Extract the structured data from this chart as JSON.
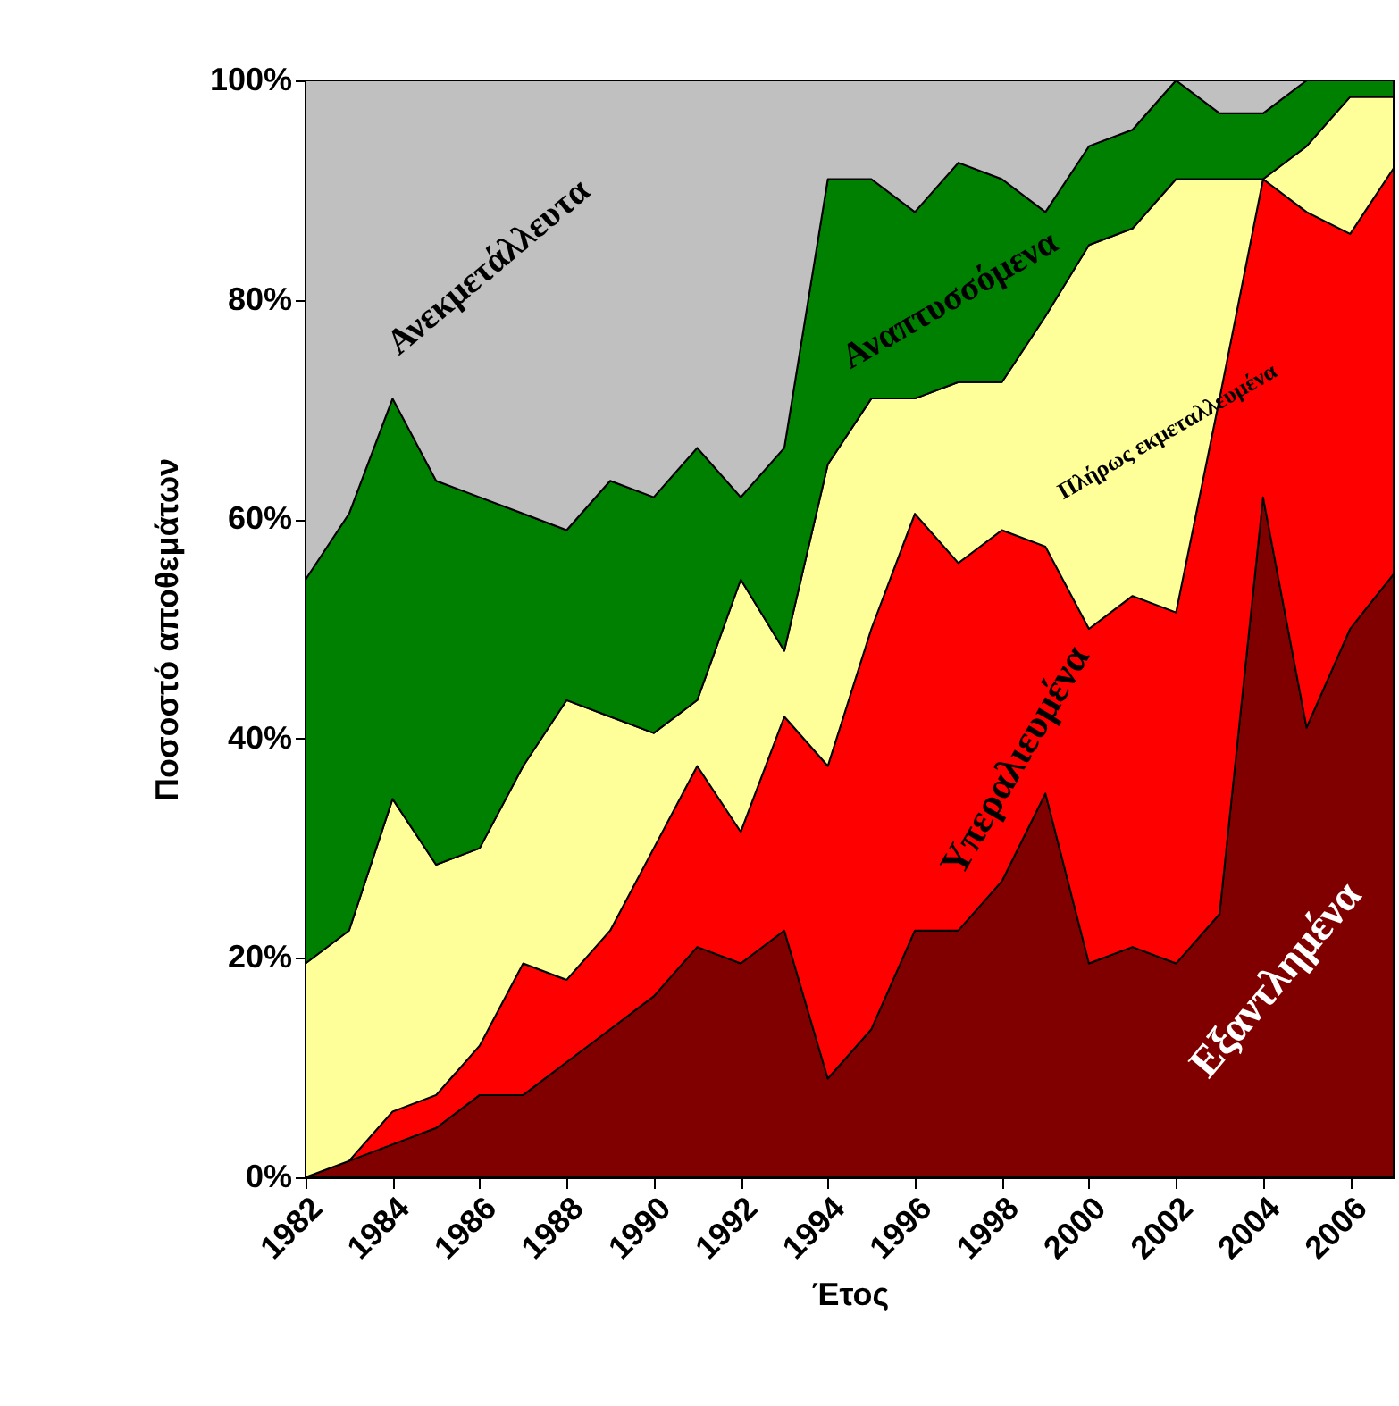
{
  "chart_data": {
    "type": "area",
    "stacked": true,
    "xlabel": "Έτος",
    "ylabel": "Ποσοστό αποθεμάτων",
    "x": [
      1982,
      1983,
      1984,
      1985,
      1986,
      1987,
      1988,
      1989,
      1990,
      1991,
      1992,
      1993,
      1994,
      1995,
      1996,
      1997,
      1998,
      1999,
      2000,
      2001,
      2002,
      2003,
      2004,
      2005,
      2006,
      2007
    ],
    "xlim": [
      1982,
      2007
    ],
    "xticks": [
      1982,
      1984,
      1986,
      1988,
      1990,
      1992,
      1994,
      1996,
      1998,
      2000,
      2002,
      2004,
      2006
    ],
    "ylim": [
      0,
      100
    ],
    "yticks": [
      {
        "value": 0,
        "label": "0%"
      },
      {
        "value": 20,
        "label": "20%"
      },
      {
        "value": 40,
        "label": "40%"
      },
      {
        "value": 60,
        "label": "60%"
      },
      {
        "value": 80,
        "label": "80%"
      },
      {
        "value": 100,
        "label": "100%"
      }
    ],
    "legend": false,
    "series": [
      {
        "name": "Εξαντλημένα",
        "color": "#800000",
        "values": [
          0,
          1.5,
          3,
          4.5,
          7.5,
          7.5,
          10.5,
          13.5,
          16.5,
          21,
          19.5,
          22.5,
          9,
          13.5,
          22.5,
          22.5,
          27,
          35,
          19.5,
          21,
          19.5,
          24,
          62,
          41,
          50,
          55
        ]
      },
      {
        "name": "Υπεραλιευμένα",
        "color": "#ff0000",
        "values": [
          0,
          0,
          3,
          3,
          4.5,
          12,
          7.5,
          9,
          13.5,
          16.5,
          12,
          19.5,
          28.5,
          36.5,
          38,
          33.5,
          32,
          22.5,
          30.5,
          32,
          32,
          47,
          29,
          47,
          36,
          37
        ]
      },
      {
        "name": "Πλήρως εκμεταλλευμένα",
        "color": "#ffff99",
        "values": [
          19.5,
          21,
          28.5,
          21,
          18,
          18,
          25.5,
          19.5,
          10.5,
          6,
          23,
          6,
          27.5,
          21,
          10.5,
          16.5,
          13.5,
          21,
          35,
          33.5,
          39.5,
          20,
          0,
          6,
          12.5,
          6.5
        ]
      },
      {
        "name": "Αναπτυσσόμενα",
        "color": "#008000",
        "values": [
          35,
          38,
          36.5,
          35,
          32,
          23,
          15.5,
          21.5,
          21.5,
          23,
          7.5,
          18.5,
          26,
          20,
          17,
          20,
          18.5,
          9.5,
          9,
          9,
          9,
          6,
          6,
          6,
          1.5,
          1.5
        ]
      },
      {
        "name": "Ανεκμετάλλευτα",
        "color": "#c0c0c0",
        "values": [
          45.5,
          39.5,
          29,
          36.5,
          38,
          39.5,
          41,
          36.5,
          38,
          33.5,
          38,
          33.5,
          9,
          9,
          12,
          7.5,
          9,
          12,
          6,
          4.5,
          0,
          3,
          3,
          0,
          0,
          0
        ]
      }
    ]
  }
}
